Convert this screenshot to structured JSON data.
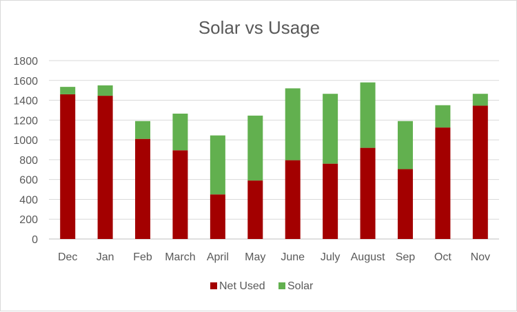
{
  "chart_data": {
    "type": "bar",
    "stacked": true,
    "title": "Solar vs Usage",
    "xlabel": "",
    "ylabel": "",
    "ylim": [
      0,
      1800
    ],
    "yticks": [
      0,
      200,
      400,
      600,
      800,
      1000,
      1200,
      1400,
      1600,
      1800
    ],
    "grid": true,
    "legend_position": "bottom",
    "categories": [
      "Dec",
      "Jan",
      "Feb",
      "March",
      "April",
      "May",
      "June",
      "July",
      "August",
      "Sep",
      "Oct",
      "Nov"
    ],
    "series": [
      {
        "name": "Net Used",
        "color": "#a30000",
        "values": [
          1460,
          1445,
          1010,
          895,
          450,
          590,
          795,
          760,
          920,
          705,
          1125,
          1345
        ]
      },
      {
        "name": "Solar",
        "color": "#62b04f",
        "values": [
          75,
          105,
          180,
          370,
          595,
          655,
          725,
          705,
          660,
          485,
          225,
          120
        ]
      }
    ]
  }
}
